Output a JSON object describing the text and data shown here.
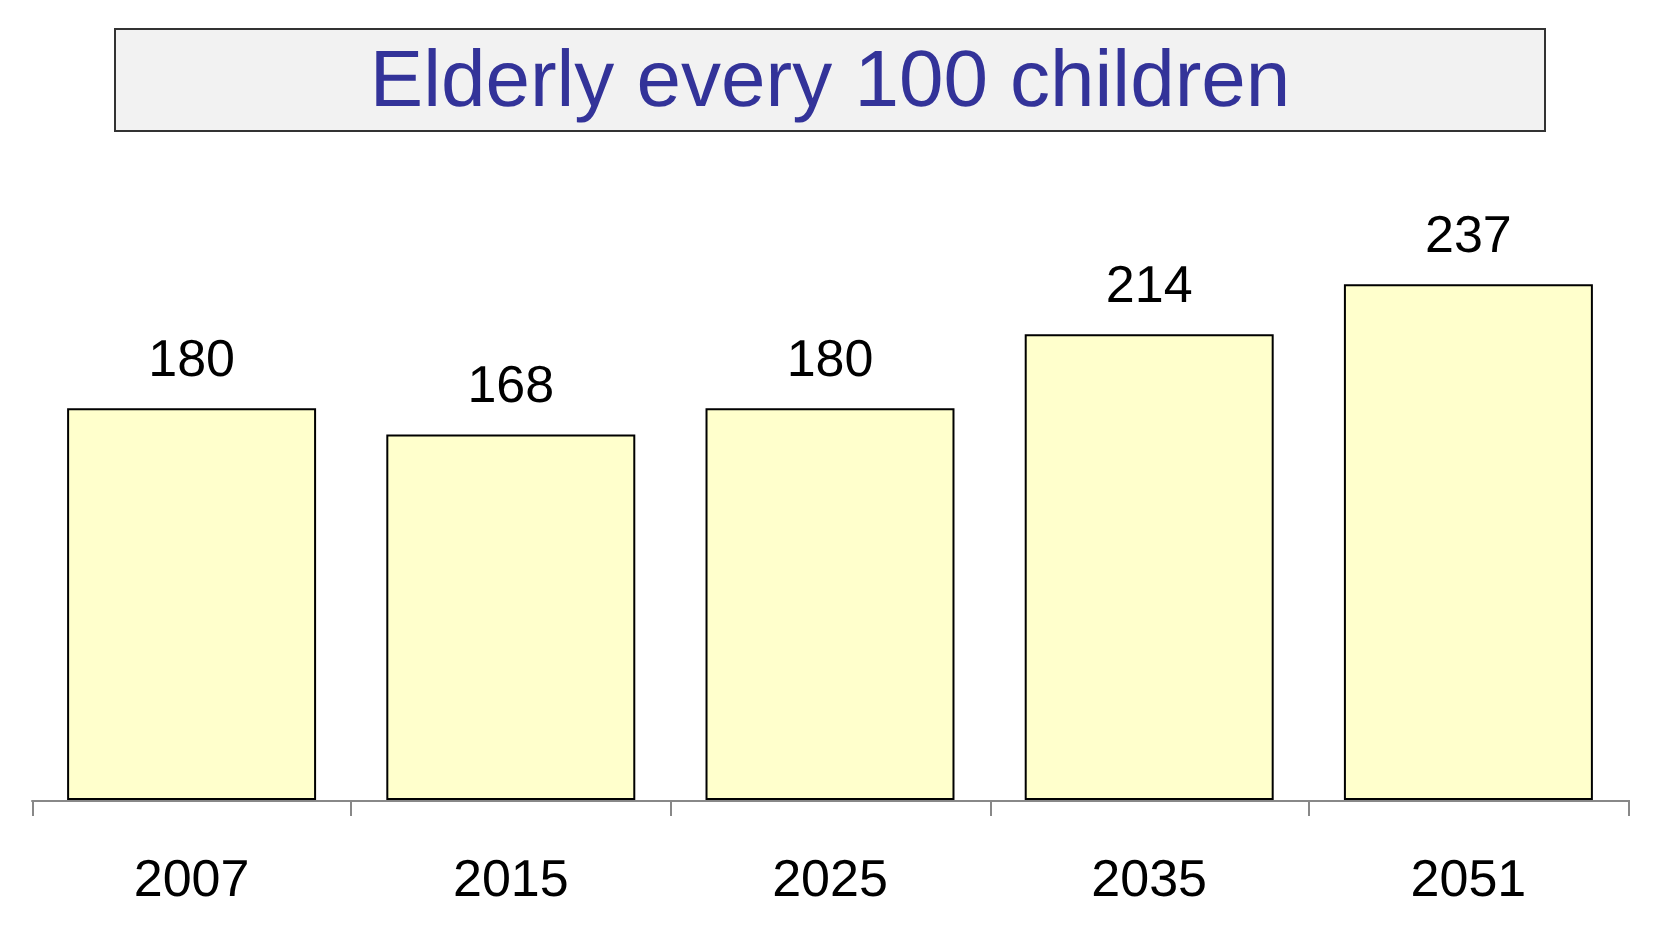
{
  "chart_data": {
    "type": "bar",
    "title": "Elderly every 100 children",
    "categories": [
      "2007",
      "2015",
      "2025",
      "2035",
      "2051"
    ],
    "values": [
      180,
      168,
      180,
      214,
      237
    ],
    "color": "#ffffcc",
    "data_labels": true
  }
}
